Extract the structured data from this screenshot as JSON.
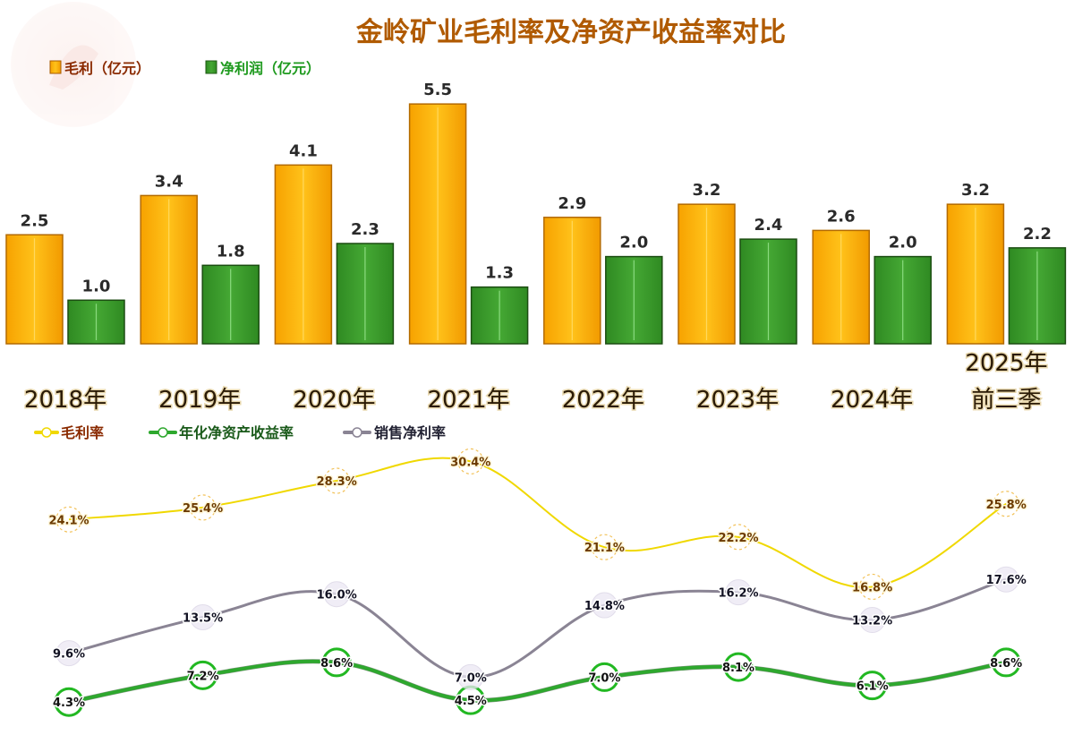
{
  "chart_data": [
    {
      "type": "bar",
      "title": "金岭矿业毛利率及净资产收益率对比",
      "legend_position": "top-left",
      "categories": [
        "2018年",
        "2019年",
        "2020年",
        "2021年",
        "2022年",
        "2023年",
        "2024年",
        "2025年前三季"
      ],
      "category_lines": [
        [
          "2018年"
        ],
        [
          "2019年"
        ],
        [
          "2020年"
        ],
        [
          "2021年"
        ],
        [
          "2022年"
        ],
        [
          "2023年"
        ],
        [
          "2024年"
        ],
        [
          "2025年",
          "前三季"
        ]
      ],
      "series": [
        {
          "name": "毛利（亿元）",
          "color": "#f5a800",
          "values": [
            2.5,
            3.4,
            4.1,
            5.5,
            2.9,
            3.2,
            2.6,
            3.2
          ],
          "labels": [
            "2.5",
            "3.4",
            "4.1",
            "5.5",
            "2.9",
            "3.2",
            "2.6",
            "3.2"
          ]
        },
        {
          "name": "净利润（亿元）",
          "color": "#3a9a2a",
          "values": [
            1.0,
            1.8,
            2.3,
            1.3,
            2.0,
            2.4,
            2.0,
            2.2
          ],
          "labels": [
            "1.0",
            "1.8",
            "2.3",
            "1.3",
            "2.0",
            "2.4",
            "2.0",
            "2.2"
          ]
        }
      ],
      "ylim": [
        0,
        6
      ]
    },
    {
      "type": "line",
      "legend_position": "top-left",
      "categories": [
        "2018年",
        "2019年",
        "2020年",
        "2021年",
        "2022年",
        "2023年",
        "2024年",
        "2025年前三季"
      ],
      "series": [
        {
          "name": "毛利率",
          "color": "#f0d800",
          "label_color": "#6b3a00",
          "values": [
            24.1,
            25.4,
            28.3,
            30.4,
            21.1,
            22.2,
            16.8,
            25.8
          ],
          "labels": [
            "24.1%",
            "25.4%",
            "28.3%",
            "30.4%",
            "21.1%",
            "22.2%",
            "16.8%",
            "25.8%"
          ]
        },
        {
          "name": "年化净资产收益率",
          "color": "#2ea82e",
          "label_color": "#111111",
          "values": [
            4.3,
            7.2,
            8.6,
            4.5,
            7.0,
            8.1,
            6.1,
            8.6
          ],
          "labels": [
            "4.3%",
            "7.2%",
            "8.6%",
            "4.5%",
            "7.0%",
            "8.1%",
            "6.1%",
            "8.6%"
          ]
        },
        {
          "name": "销售净利率",
          "color": "#8a8494",
          "label_color": "#111122",
          "values": [
            9.6,
            13.5,
            16.0,
            7.0,
            14.8,
            16.2,
            13.2,
            17.6
          ],
          "labels": [
            "9.6%",
            "13.5%",
            "16.0%",
            "7.0%",
            "14.8%",
            "16.2%",
            "13.2%",
            "17.6%"
          ]
        }
      ],
      "ylabel": "%",
      "ylim": [
        0,
        32
      ]
    }
  ]
}
